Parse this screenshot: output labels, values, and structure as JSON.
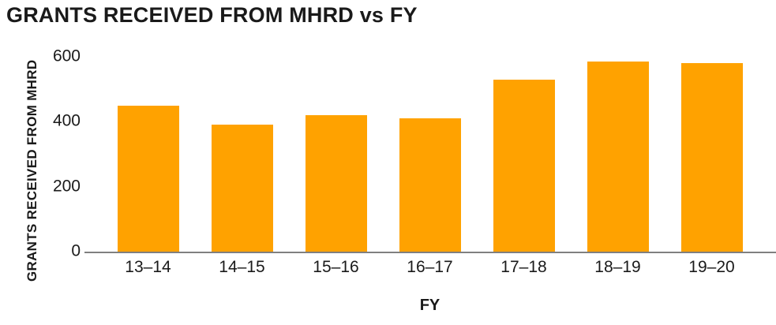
{
  "chart_data": {
    "type": "bar",
    "title": "GRANTS RECEIVED FROM MHRD vs FY",
    "xlabel": "FY",
    "ylabel": "GRANTS RECEIVED FROM MHRD",
    "categories": [
      "13–14",
      "14–15",
      "15–16",
      "16–17",
      "17–18",
      "18–19",
      "19–20"
    ],
    "values": [
      450,
      390,
      420,
      410,
      530,
      585,
      580
    ],
    "ylim": [
      0,
      600
    ],
    "yticks": [
      0,
      200,
      400,
      600
    ],
    "grid": false,
    "legend": false,
    "bar_color": "#FFA200",
    "axis_color": "#808080",
    "text_color": "#1A1A1A",
    "background": "#FFFFFF"
  }
}
